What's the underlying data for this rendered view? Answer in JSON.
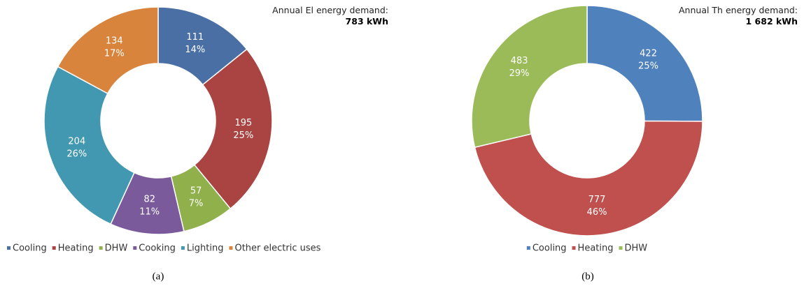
{
  "chart_data": [
    {
      "type": "donut",
      "annotation": "Annual El energy demand:",
      "total": "783 kWh",
      "categories": [
        "Cooling",
        "Heating",
        "DHW",
        "Cooking",
        "Lighting",
        "Other electric uses"
      ],
      "values": [
        111,
        195,
        57,
        82,
        204,
        134
      ],
      "percent_labels": [
        "14%",
        "25%",
        "7%",
        "11%",
        "26%",
        "17%"
      ],
      "colors": [
        "#4a6fa5",
        "#a94442",
        "#8fb04a",
        "#7a5a9a",
        "#4298b0",
        "#d9843c"
      ],
      "caption": "(a)"
    },
    {
      "type": "donut",
      "annotation": "Annual Th energy demand:",
      "total": "1 682 kWh",
      "categories": [
        "Cooling",
        "Heating",
        "DHW"
      ],
      "values": [
        422,
        777,
        483
      ],
      "percent_labels": [
        "25%",
        "46%",
        "29%"
      ],
      "colors": [
        "#4f81bd",
        "#c0504d",
        "#9bbb59"
      ],
      "caption": "(b)"
    }
  ]
}
